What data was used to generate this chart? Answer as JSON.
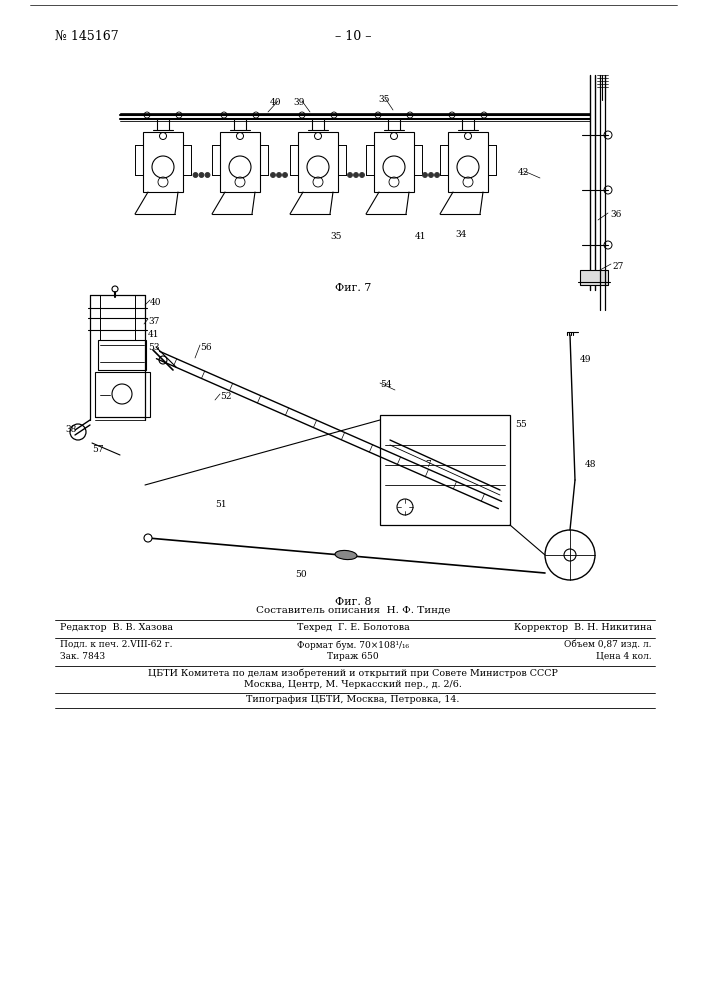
{
  "page_number": "№ 145167",
  "page_center": "– 10 –",
  "fig7_label": "Фиг. 7",
  "fig8_label": "Фиг. 8",
  "composer_line": "Составитель описания  Н. Ф. Тинде",
  "footer_col1_row1": "Редактор  В. В. Хазова",
  "footer_col2_row1": "Техред  Г. Е. Болотова",
  "footer_col3_row1": "Корректор  В. Н. Никитина",
  "footer_col1_row2": "Подл. к печ. 2.VIII-62 г.",
  "footer_col2_row2": "Формат бум. 70×108¹/₁₆",
  "footer_col3_row2": "Объем 0,87 изд. л.",
  "footer_col1_row3": "Зак. 7843",
  "footer_col2_row3": "Тираж 650",
  "footer_col3_row3": "Цена 4 кол.",
  "footer_cbti1": "ЦБТИ Комитета по делам изобретений и открытий при Совете Министров СССР",
  "footer_cbti2": "Москва, Центр, М. Черкасский пер., д. 2/6.",
  "footer_typo": "Типография ЦБТИ, Москва, Петровка, 14.",
  "bg_color": "#ffffff",
  "line_color": "#000000",
  "text_color": "#000000"
}
